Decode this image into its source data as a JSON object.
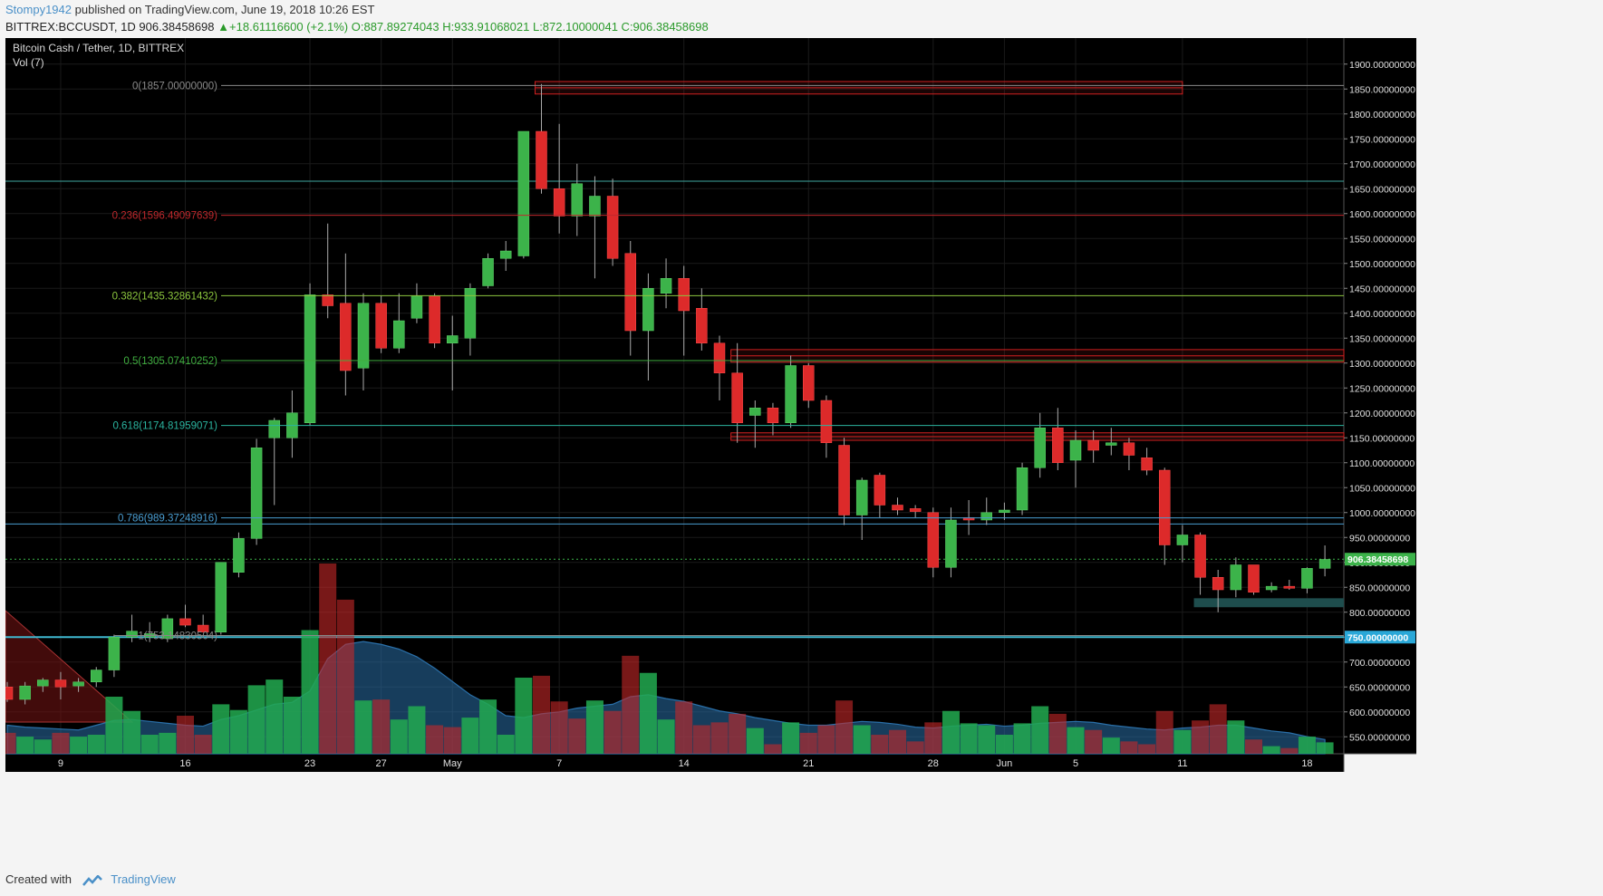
{
  "header": {
    "user": "Stompy1942",
    "published": "published on TradingView.com, June 19, 2018 10:26 EST",
    "symbol_line_prefix": "BITTREX:BCCUSDT, 1D",
    "last": "906.38458698",
    "change": "+18.61116600 (+2.1%)",
    "ohlc": "O:887.89274043 H:933.91068021 L:872.10000041 C:906.38458698"
  },
  "legend": {
    "title": "Bitcoin Cash / Tether, 1D, BITTREX",
    "volume_label": "Vol (7)"
  },
  "footer": {
    "created_with": "Created with",
    "brand": "TradingView"
  },
  "colors": {
    "background": "#000000",
    "up": "#3cb34a",
    "down": "#dd2a2a",
    "volume_ma": "#2a6fa8"
  },
  "chart_data": {
    "type": "candlestick",
    "title": "Bitcoin Cash / Tether, 1D, BITTREX",
    "ylim": [
      525,
      1925
    ],
    "y_ticks": [
      "550.00000000",
      "600.00000000",
      "650.00000000",
      "700.00000000",
      "750.00000000",
      "800.00000000",
      "850.00000000",
      "900.00000000",
      "950.00000000",
      "1000.00000000",
      "1050.00000000",
      "1100.00000000",
      "1150.00000000",
      "1200.00000000",
      "1250.00000000",
      "1300.00000000",
      "1350.00000000",
      "1400.00000000",
      "1450.00000000",
      "1500.00000000",
      "1550.00000000",
      "1600.00000000",
      "1650.00000000",
      "1700.00000000",
      "1750.00000000",
      "1800.00000000",
      "1850.00000000",
      "1900.00000000"
    ],
    "x_ticks": [
      {
        "label": "9",
        "day": "2018-04-09"
      },
      {
        "label": "16",
        "day": "2018-04-16"
      },
      {
        "label": "23",
        "day": "2018-04-23"
      },
      {
        "label": "27",
        "day": "2018-04-27"
      },
      {
        "label": "May",
        "day": "2018-05-01"
      },
      {
        "label": "7",
        "day": "2018-05-07"
      },
      {
        "label": "14",
        "day": "2018-05-14"
      },
      {
        "label": "21",
        "day": "2018-05-21"
      },
      {
        "label": "28",
        "day": "2018-05-28"
      },
      {
        "label": "Jun",
        "day": "2018-06-01"
      },
      {
        "label": "5",
        "day": "2018-06-05"
      },
      {
        "label": "11",
        "day": "2018-06-11"
      },
      {
        "label": "18",
        "day": "2018-06-18"
      }
    ],
    "candles": [
      {
        "d": "2018-04-06",
        "o": 650,
        "h": 660,
        "l": 620,
        "c": 625
      },
      {
        "d": "2018-04-07",
        "o": 625,
        "h": 660,
        "l": 615,
        "c": 652
      },
      {
        "d": "2018-04-08",
        "o": 652,
        "h": 668,
        "l": 640,
        "c": 664
      },
      {
        "d": "2018-04-09",
        "o": 664,
        "h": 680,
        "l": 625,
        "c": 650
      },
      {
        "d": "2018-04-10",
        "o": 652,
        "h": 668,
        "l": 640,
        "c": 660
      },
      {
        "d": "2018-04-11",
        "o": 660,
        "h": 690,
        "l": 650,
        "c": 684
      },
      {
        "d": "2018-04-12",
        "o": 684,
        "h": 755,
        "l": 670,
        "c": 750
      },
      {
        "d": "2018-04-13",
        "o": 750,
        "h": 795,
        "l": 740,
        "c": 762
      },
      {
        "d": "2018-04-14",
        "o": 750,
        "h": 780,
        "l": 740,
        "c": 757
      },
      {
        "d": "2018-04-15",
        "o": 747,
        "h": 795,
        "l": 740,
        "c": 787
      },
      {
        "d": "2018-04-16",
        "o": 787,
        "h": 815,
        "l": 770,
        "c": 774
      },
      {
        "d": "2018-04-17",
        "o": 774,
        "h": 795,
        "l": 760,
        "c": 760
      },
      {
        "d": "2018-04-18",
        "o": 760,
        "h": 900,
        "l": 755,
        "c": 900
      },
      {
        "d": "2018-04-19",
        "o": 880,
        "h": 960,
        "l": 870,
        "c": 948
      },
      {
        "d": "2018-04-20",
        "o": 948,
        "h": 1148,
        "l": 935,
        "c": 1130
      },
      {
        "d": "2018-04-21",
        "o": 1150,
        "h": 1190,
        "l": 1015,
        "c": 1185
      },
      {
        "d": "2018-04-22",
        "o": 1150,
        "h": 1245,
        "l": 1110,
        "c": 1200
      },
      {
        "d": "2018-04-23",
        "o": 1180,
        "h": 1460,
        "l": 1175,
        "c": 1437
      },
      {
        "d": "2018-04-24",
        "o": 1437,
        "h": 1580,
        "l": 1390,
        "c": 1415
      },
      {
        "d": "2018-04-25",
        "o": 1420,
        "h": 1520,
        "l": 1235,
        "c": 1285
      },
      {
        "d": "2018-04-26",
        "o": 1290,
        "h": 1440,
        "l": 1245,
        "c": 1420
      },
      {
        "d": "2018-04-27",
        "o": 1420,
        "h": 1435,
        "l": 1320,
        "c": 1330
      },
      {
        "d": "2018-04-28",
        "o": 1330,
        "h": 1440,
        "l": 1320,
        "c": 1385
      },
      {
        "d": "2018-04-29",
        "o": 1390,
        "h": 1460,
        "l": 1380,
        "c": 1435
      },
      {
        "d": "2018-04-30",
        "o": 1435,
        "h": 1440,
        "l": 1330,
        "c": 1340
      },
      {
        "d": "2018-05-01",
        "o": 1340,
        "h": 1395,
        "l": 1245,
        "c": 1355
      },
      {
        "d": "2018-05-02",
        "o": 1350,
        "h": 1460,
        "l": 1315,
        "c": 1450
      },
      {
        "d": "2018-05-03",
        "o": 1455,
        "h": 1520,
        "l": 1450,
        "c": 1510
      },
      {
        "d": "2018-05-04",
        "o": 1510,
        "h": 1545,
        "l": 1485,
        "c": 1525
      },
      {
        "d": "2018-05-05",
        "o": 1515,
        "h": 1765,
        "l": 1510,
        "c": 1765
      },
      {
        "d": "2018-05-06",
        "o": 1765,
        "h": 1860,
        "l": 1640,
        "c": 1650
      },
      {
        "d": "2018-05-07",
        "o": 1650,
        "h": 1780,
        "l": 1560,
        "c": 1595
      },
      {
        "d": "2018-05-08",
        "o": 1595,
        "h": 1700,
        "l": 1555,
        "c": 1660
      },
      {
        "d": "2018-05-09",
        "o": 1595,
        "h": 1675,
        "l": 1470,
        "c": 1635
      },
      {
        "d": "2018-05-10",
        "o": 1635,
        "h": 1670,
        "l": 1495,
        "c": 1510
      },
      {
        "d": "2018-05-11",
        "o": 1520,
        "h": 1545,
        "l": 1315,
        "c": 1365
      },
      {
        "d": "2018-05-12",
        "o": 1365,
        "h": 1480,
        "l": 1265,
        "c": 1450
      },
      {
        "d": "2018-05-13",
        "o": 1440,
        "h": 1510,
        "l": 1410,
        "c": 1470
      },
      {
        "d": "2018-05-14",
        "o": 1470,
        "h": 1495,
        "l": 1315,
        "c": 1405
      },
      {
        "d": "2018-05-15",
        "o": 1410,
        "h": 1450,
        "l": 1325,
        "c": 1340
      },
      {
        "d": "2018-05-16",
        "o": 1340,
        "h": 1355,
        "l": 1225,
        "c": 1280
      },
      {
        "d": "2018-05-17",
        "o": 1280,
        "h": 1340,
        "l": 1140,
        "c": 1180
      },
      {
        "d": "2018-05-18",
        "o": 1195,
        "h": 1225,
        "l": 1130,
        "c": 1210
      },
      {
        "d": "2018-05-19",
        "o": 1210,
        "h": 1220,
        "l": 1155,
        "c": 1180
      },
      {
        "d": "2018-05-20",
        "o": 1180,
        "h": 1315,
        "l": 1170,
        "c": 1295
      },
      {
        "d": "2018-05-21",
        "o": 1295,
        "h": 1300,
        "l": 1210,
        "c": 1225
      },
      {
        "d": "2018-05-22",
        "o": 1225,
        "h": 1235,
        "l": 1110,
        "c": 1140
      },
      {
        "d": "2018-05-23",
        "o": 1135,
        "h": 1150,
        "l": 975,
        "c": 995
      },
      {
        "d": "2018-05-24",
        "o": 995,
        "h": 1070,
        "l": 945,
        "c": 1065
      },
      {
        "d": "2018-05-25",
        "o": 1075,
        "h": 1080,
        "l": 990,
        "c": 1015
      },
      {
        "d": "2018-05-26",
        "o": 1015,
        "h": 1030,
        "l": 995,
        "c": 1005
      },
      {
        "d": "2018-05-27",
        "o": 1008,
        "h": 1015,
        "l": 990,
        "c": 1002
      },
      {
        "d": "2018-05-28",
        "o": 1000,
        "h": 1010,
        "l": 870,
        "c": 890
      },
      {
        "d": "2018-05-29",
        "o": 890,
        "h": 1010,
        "l": 870,
        "c": 985
      },
      {
        "d": "2018-05-30",
        "o": 990,
        "h": 1025,
        "l": 955,
        "c": 985
      },
      {
        "d": "2018-05-31",
        "o": 985,
        "h": 1030,
        "l": 975,
        "c": 1000
      },
      {
        "d": "2018-06-01",
        "o": 1000,
        "h": 1020,
        "l": 985,
        "c": 1005
      },
      {
        "d": "2018-06-02",
        "o": 1005,
        "h": 1100,
        "l": 995,
        "c": 1090
      },
      {
        "d": "2018-06-03",
        "o": 1090,
        "h": 1200,
        "l": 1070,
        "c": 1170
      },
      {
        "d": "2018-06-04",
        "o": 1170,
        "h": 1210,
        "l": 1085,
        "c": 1100
      },
      {
        "d": "2018-06-05",
        "o": 1105,
        "h": 1165,
        "l": 1050,
        "c": 1145
      },
      {
        "d": "2018-06-06",
        "o": 1145,
        "h": 1165,
        "l": 1100,
        "c": 1125
      },
      {
        "d": "2018-06-07",
        "o": 1135,
        "h": 1170,
        "l": 1115,
        "c": 1140
      },
      {
        "d": "2018-06-08",
        "o": 1140,
        "h": 1150,
        "l": 1085,
        "c": 1115
      },
      {
        "d": "2018-06-09",
        "o": 1110,
        "h": 1130,
        "l": 1075,
        "c": 1085
      },
      {
        "d": "2018-06-10",
        "o": 1085,
        "h": 1090,
        "l": 895,
        "c": 935
      },
      {
        "d": "2018-06-11",
        "o": 935,
        "h": 975,
        "l": 900,
        "c": 955
      },
      {
        "d": "2018-06-12",
        "o": 955,
        "h": 960,
        "l": 835,
        "c": 870
      },
      {
        "d": "2018-06-13",
        "o": 870,
        "h": 885,
        "l": 800,
        "c": 845
      },
      {
        "d": "2018-06-14",
        "o": 845,
        "h": 910,
        "l": 830,
        "c": 895
      },
      {
        "d": "2018-06-15",
        "o": 895,
        "h": 895,
        "l": 835,
        "c": 840
      },
      {
        "d": "2018-06-16",
        "o": 845,
        "h": 860,
        "l": 840,
        "c": 852
      },
      {
        "d": "2018-06-17",
        "o": 852,
        "h": 865,
        "l": 845,
        "c": 848
      },
      {
        "d": "2018-06-18",
        "o": 848,
        "h": 890,
        "l": 838,
        "c": 888
      },
      {
        "d": "2018-06-19",
        "o": 888,
        "h": 934,
        "l": 872,
        "c": 906
      }
    ],
    "volume": [
      {
        "d": "2018-04-06",
        "v": 22,
        "up": false
      },
      {
        "d": "2018-04-07",
        "v": 18,
        "up": true
      },
      {
        "d": "2018-04-08",
        "v": 15,
        "up": true
      },
      {
        "d": "2018-04-09",
        "v": 22,
        "up": false
      },
      {
        "d": "2018-04-10",
        "v": 18,
        "up": true
      },
      {
        "d": "2018-04-11",
        "v": 20,
        "up": true
      },
      {
        "d": "2018-04-12",
        "v": 60,
        "up": true
      },
      {
        "d": "2018-04-13",
        "v": 45,
        "up": true
      },
      {
        "d": "2018-04-14",
        "v": 20,
        "up": true
      },
      {
        "d": "2018-04-15",
        "v": 22,
        "up": true
      },
      {
        "d": "2018-04-16",
        "v": 40,
        "up": false
      },
      {
        "d": "2018-04-17",
        "v": 20,
        "up": false
      },
      {
        "d": "2018-04-18",
        "v": 52,
        "up": true
      },
      {
        "d": "2018-04-19",
        "v": 46,
        "up": true
      },
      {
        "d": "2018-04-20",
        "v": 72,
        "up": true
      },
      {
        "d": "2018-04-21",
        "v": 78,
        "up": true
      },
      {
        "d": "2018-04-22",
        "v": 60,
        "up": true
      },
      {
        "d": "2018-04-23",
        "v": 130,
        "up": true
      },
      {
        "d": "2018-04-24",
        "v": 200,
        "up": false
      },
      {
        "d": "2018-04-25",
        "v": 162,
        "up": false
      },
      {
        "d": "2018-04-26",
        "v": 56,
        "up": true
      },
      {
        "d": "2018-04-27",
        "v": 57,
        "up": false
      },
      {
        "d": "2018-04-28",
        "v": 36,
        "up": true
      },
      {
        "d": "2018-04-29",
        "v": 50,
        "up": true
      },
      {
        "d": "2018-04-30",
        "v": 30,
        "up": false
      },
      {
        "d": "2018-05-01",
        "v": 28,
        "up": false
      },
      {
        "d": "2018-05-02",
        "v": 38,
        "up": true
      },
      {
        "d": "2018-05-03",
        "v": 57,
        "up": true
      },
      {
        "d": "2018-05-04",
        "v": 20,
        "up": true
      },
      {
        "d": "2018-05-05",
        "v": 80,
        "up": true
      },
      {
        "d": "2018-05-06",
        "v": 82,
        "up": false
      },
      {
        "d": "2018-05-07",
        "v": 55,
        "up": false
      },
      {
        "d": "2018-05-08",
        "v": 37,
        "up": false
      },
      {
        "d": "2018-05-09",
        "v": 56,
        "up": true
      },
      {
        "d": "2018-05-10",
        "v": 45,
        "up": false
      },
      {
        "d": "2018-05-11",
        "v": 103,
        "up": false
      },
      {
        "d": "2018-05-12",
        "v": 85,
        "up": true
      },
      {
        "d": "2018-05-13",
        "v": 36,
        "up": true
      },
      {
        "d": "2018-05-14",
        "v": 55,
        "up": false
      },
      {
        "d": "2018-05-15",
        "v": 30,
        "up": false
      },
      {
        "d": "2018-05-16",
        "v": 33,
        "up": false
      },
      {
        "d": "2018-05-17",
        "v": 42,
        "up": false
      },
      {
        "d": "2018-05-18",
        "v": 27,
        "up": true
      },
      {
        "d": "2018-05-19",
        "v": 10,
        "up": false
      },
      {
        "d": "2018-05-20",
        "v": 33,
        "up": true
      },
      {
        "d": "2018-05-21",
        "v": 22,
        "up": false
      },
      {
        "d": "2018-05-22",
        "v": 30,
        "up": false
      },
      {
        "d": "2018-05-23",
        "v": 56,
        "up": false
      },
      {
        "d": "2018-05-24",
        "v": 30,
        "up": true
      },
      {
        "d": "2018-05-25",
        "v": 20,
        "up": false
      },
      {
        "d": "2018-05-26",
        "v": 25,
        "up": false
      },
      {
        "d": "2018-05-27",
        "v": 13,
        "up": false
      },
      {
        "d": "2018-05-28",
        "v": 33,
        "up": false
      },
      {
        "d": "2018-05-29",
        "v": 45,
        "up": true
      },
      {
        "d": "2018-05-30",
        "v": 32,
        "up": true
      },
      {
        "d": "2018-05-31",
        "v": 30,
        "up": true
      },
      {
        "d": "2018-06-01",
        "v": 20,
        "up": true
      },
      {
        "d": "2018-06-02",
        "v": 32,
        "up": true
      },
      {
        "d": "2018-06-03",
        "v": 50,
        "up": true
      },
      {
        "d": "2018-06-04",
        "v": 42,
        "up": false
      },
      {
        "d": "2018-06-05",
        "v": 28,
        "up": true
      },
      {
        "d": "2018-06-06",
        "v": 25,
        "up": false
      },
      {
        "d": "2018-06-07",
        "v": 17,
        "up": true
      },
      {
        "d": "2018-06-08",
        "v": 13,
        "up": false
      },
      {
        "d": "2018-06-09",
        "v": 10,
        "up": false
      },
      {
        "d": "2018-06-10",
        "v": 45,
        "up": false
      },
      {
        "d": "2018-06-11",
        "v": 25,
        "up": true
      },
      {
        "d": "2018-06-12",
        "v": 35,
        "up": false
      },
      {
        "d": "2018-06-13",
        "v": 52,
        "up": false
      },
      {
        "d": "2018-06-14",
        "v": 35,
        "up": true
      },
      {
        "d": "2018-06-15",
        "v": 15,
        "up": false
      },
      {
        "d": "2018-06-16",
        "v": 8,
        "up": true
      },
      {
        "d": "2018-06-17",
        "v": 6,
        "up": false
      },
      {
        "d": "2018-06-18",
        "v": 18,
        "up": true
      },
      {
        "d": "2018-06-19",
        "v": 12,
        "up": true
      }
    ],
    "volume_ma": [
      30,
      28,
      27,
      26,
      25,
      30,
      35,
      36,
      34,
      32,
      30,
      29,
      36,
      40,
      46,
      52,
      54,
      66,
      100,
      115,
      118,
      115,
      110,
      102,
      90,
      76,
      62,
      52,
      40,
      38,
      42,
      44,
      48,
      50,
      52,
      60,
      62,
      58,
      55,
      50,
      45,
      42,
      38,
      35,
      32,
      30,
      30,
      32,
      34,
      33,
      31,
      28,
      27,
      29,
      30,
      31,
      29,
      30,
      32,
      33,
      34,
      33,
      30,
      28,
      26,
      25,
      27,
      28,
      30,
      30,
      27,
      24,
      22,
      18,
      15
    ],
    "fib_levels": [
      {
        "label": "0(1857.00000000)",
        "price": 1857,
        "color": "#8a8a8a"
      },
      {
        "label": "0.236(1596.49097639)",
        "price": 1596.49,
        "color": "#c0282c"
      },
      {
        "label": "0.382(1435.32861432)",
        "price": 1435.33,
        "color": "#8cc63e"
      },
      {
        "label": "0.5(1305.07410252)",
        "price": 1305.07,
        "color": "#3fae3f"
      },
      {
        "label": "0.618(1174.81959071)",
        "price": 1174.82,
        "color": "#2bb5a0"
      },
      {
        "label": "0.786(989.37248916)",
        "price": 989.37,
        "color": "#4a9dd1"
      },
      {
        "label": "1(753.14830504)",
        "price": 753.15,
        "color": "#888888"
      }
    ],
    "h_lines": [
      {
        "price": 1665,
        "color": "#3fa7a0"
      },
      {
        "price": 977,
        "color": "#4a9dd1"
      },
      {
        "price": 750,
        "color": "#3fb8d0",
        "thick": true
      }
    ],
    "zones": [
      {
        "from": "2018-05-06",
        "to": "2018-06-11",
        "p1": 1865,
        "p2": 1840,
        "color": "#d02020"
      },
      {
        "from": "2018-05-17",
        "to": "2018-06-19",
        "p1": 1327,
        "p2": 1302,
        "color": "#d02020"
      },
      {
        "from": "2018-05-17",
        "to": "2018-06-19",
        "p1": 1160,
        "p2": 1145,
        "color": "#d02020"
      },
      {
        "from": "2018-06-12",
        "to": "2018-06-19",
        "p1": 828,
        "p2": 810,
        "color": "#1e4d4d",
        "fill": true
      }
    ],
    "current_price_label": "906.38458698",
    "current_price": 906.38458698,
    "support_label": "750.00000000",
    "support_price": 750
  }
}
